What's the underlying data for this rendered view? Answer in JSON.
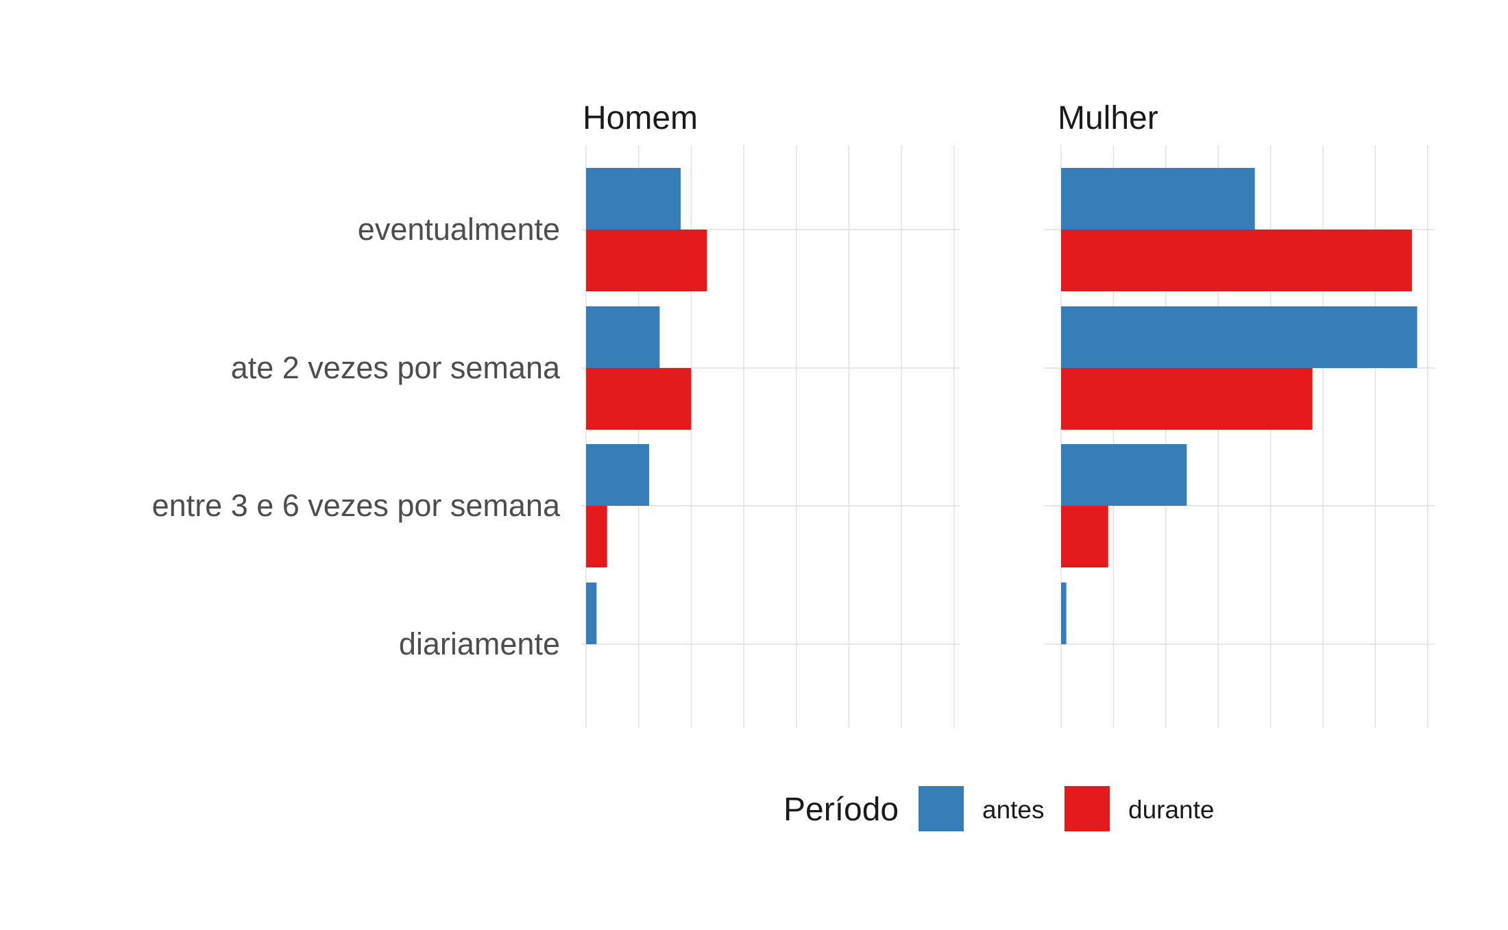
{
  "chart_data": {
    "type": "bar",
    "orientation": "horizontal",
    "categories": [
      "eventualmente",
      "ate 2 vezes por semana",
      "entre 3 e 6 vezes por semana",
      "diariamente"
    ],
    "facets": [
      {
        "title": "Homem",
        "series": [
          {
            "name": "antes",
            "values": [
              1.8,
              1.4,
              1.2,
              0.2
            ]
          },
          {
            "name": "durante",
            "values": [
              2.3,
              2.0,
              0.4,
              0
            ]
          }
        ]
      },
      {
        "title": "Mulher",
        "series": [
          {
            "name": "antes",
            "values": [
              3.7,
              6.8,
              2.4,
              0.1
            ]
          },
          {
            "name": "durante",
            "values": [
              6.7,
              4.8,
              0.9,
              0
            ]
          }
        ]
      }
    ],
    "xlim": [
      0,
      7
    ],
    "grid": true,
    "x_tick_labels_shown": false,
    "legend": {
      "title": "Período",
      "position": "bottom",
      "entries": [
        "antes",
        "durante"
      ]
    },
    "colors": {
      "antes": "#377EB8",
      "durante": "#E41A1C"
    }
  }
}
